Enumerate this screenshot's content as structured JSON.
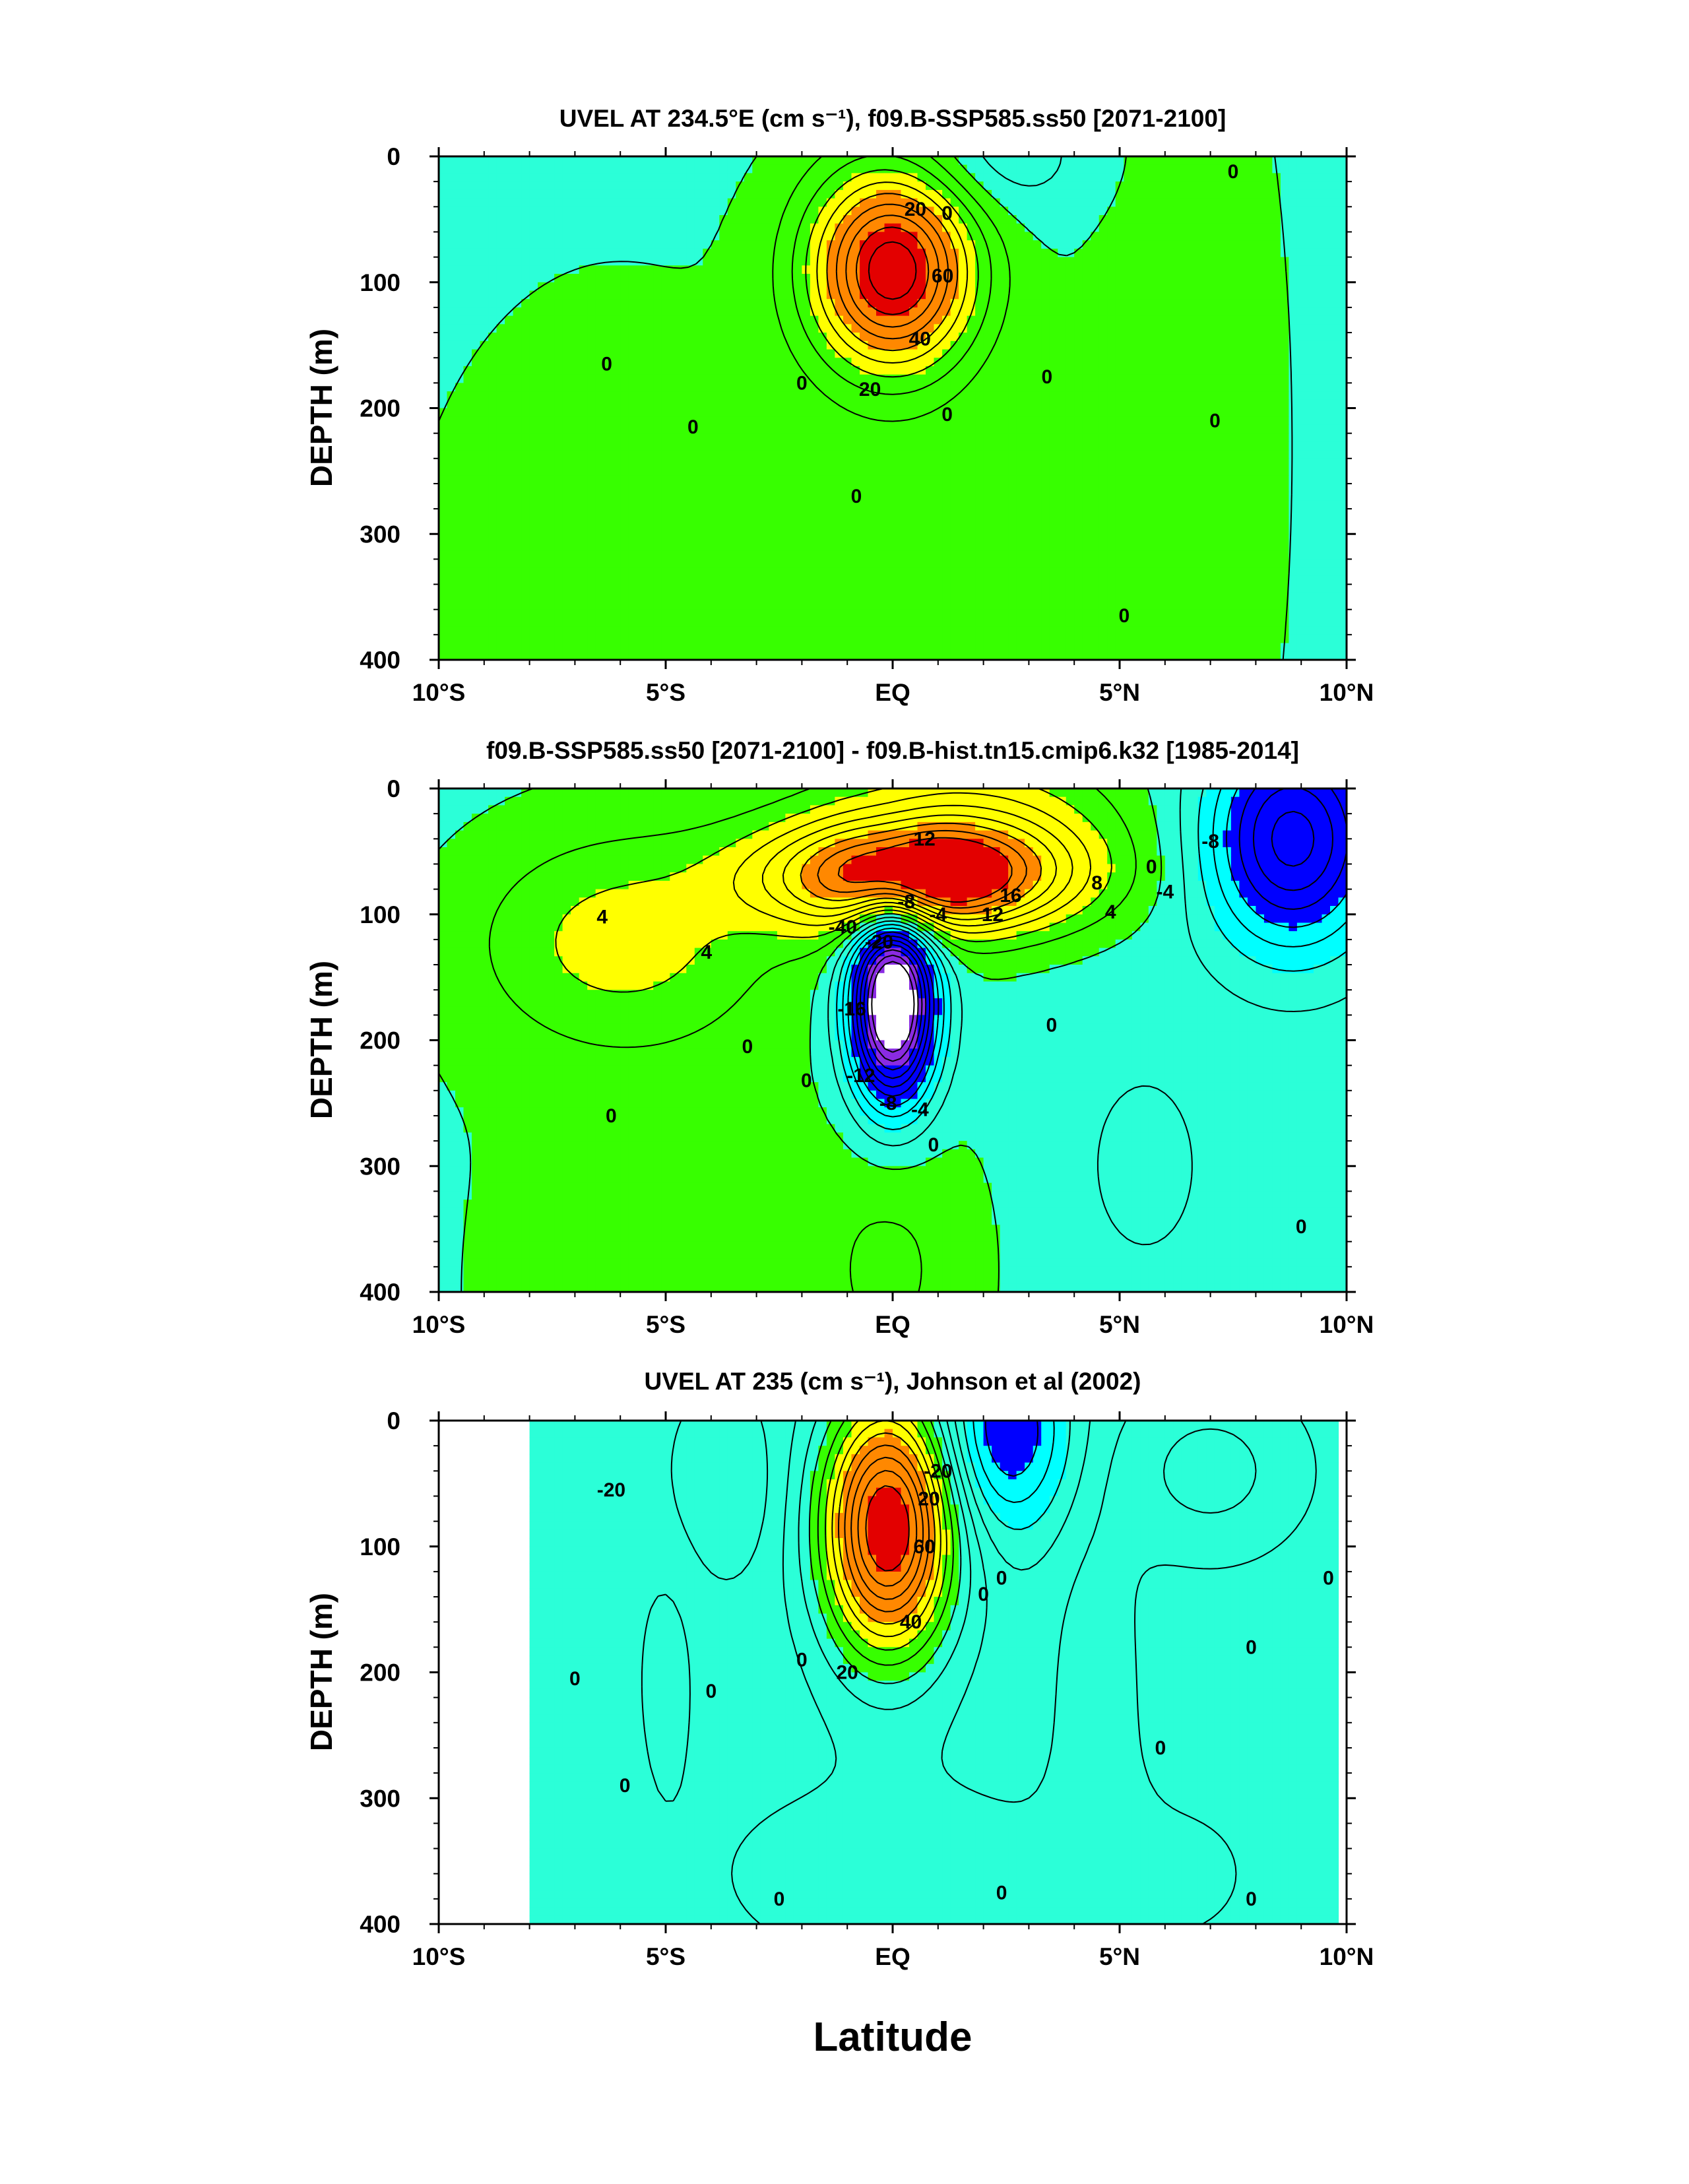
{
  "figure": {
    "xlabel": "Latitude"
  },
  "chart_data": [
    {
      "type": "heatmap",
      "title": "UVEL AT 234.5°E (cm s⁻¹), f09.B-SSP585.ss50 [2071-2100]",
      "ylabel": "DEPTH (m)",
      "xlabel": "Latitude",
      "xlim": [
        -10,
        10
      ],
      "ylim": [
        400,
        0
      ],
      "x_ticks": [
        -10,
        -5,
        0,
        5,
        10
      ],
      "x_tick_labels": [
        "10°S",
        "5°S",
        "EQ",
        "5°N",
        "10°N"
      ],
      "y_ticks": [
        0,
        100,
        200,
        300,
        400
      ],
      "y_tick_labels": [
        "0",
        "100",
        "200",
        "300",
        "400"
      ],
      "colors": [
        "#2bffd8",
        "#37ff00",
        "#ffff00",
        "#ff8800",
        "#e30000"
      ],
      "field": {
        "background": -2,
        "features": [
          {
            "lat": 0.0,
            "depth": 90,
            "amp": 100,
            "sx": 1.25,
            "sy": 55
          },
          {
            "lat": -6.0,
            "depth": 400,
            "amp": 8,
            "sx": 3.0,
            "sy": 190
          },
          {
            "lat": 0.5,
            "depth": 400,
            "amp": 8,
            "sx": 2.0,
            "sy": 120
          },
          {
            "lat": 6.3,
            "depth": 230,
            "amp": 8,
            "sx": 1.5,
            "sy": 260
          },
          {
            "lat": 2.3,
            "depth": 0,
            "amp": -16,
            "sx": 1.4,
            "sy": 35
          }
        ]
      },
      "contour_labels": [
        {
          "text": "20",
          "lat": 0.5,
          "depth": 42
        },
        {
          "text": "0",
          "lat": 1.2,
          "depth": 45
        },
        {
          "text": "60",
          "lat": 1.1,
          "depth": 95
        },
        {
          "text": "40",
          "lat": 0.6,
          "depth": 145
        },
        {
          "text": "20",
          "lat": -0.5,
          "depth": 185
        },
        {
          "text": "0",
          "lat": -2.0,
          "depth": 180
        },
        {
          "text": "0",
          "lat": 1.2,
          "depth": 205
        },
        {
          "text": "0",
          "lat": 3.4,
          "depth": 175
        },
        {
          "text": "0",
          "lat": -6.3,
          "depth": 165
        },
        {
          "text": "0",
          "lat": -4.4,
          "depth": 215
        },
        {
          "text": "0",
          "lat": -0.8,
          "depth": 270
        },
        {
          "text": "0",
          "lat": 7.5,
          "depth": 12
        },
        {
          "text": "0",
          "lat": 7.1,
          "depth": 210
        },
        {
          "text": "0",
          "lat": 5.1,
          "depth": 365
        }
      ]
    },
    {
      "type": "heatmap",
      "title": "f09.B-SSP585.ss50 [2071-2100] - f09.B-hist.tn15.cmip6.k32 [1985-2014]",
      "ylabel": "DEPTH (m)",
      "xlabel": "Latitude",
      "xlim": [
        -10,
        10
      ],
      "ylim": [
        400,
        0
      ],
      "x_ticks": [
        -10,
        -5,
        0,
        5,
        10
      ],
      "x_tick_labels": [
        "10°S",
        "5°S",
        "EQ",
        "5°N",
        "10°N"
      ],
      "y_ticks": [
        0,
        100,
        200,
        300,
        400
      ],
      "y_tick_labels": [
        "0",
        "100",
        "200",
        "300",
        "400"
      ],
      "colors": [
        "#ffffff",
        "#8a2be2",
        "#0000ff",
        "#00ffff",
        "#2bffd8",
        "#37ff00",
        "#ffff00",
        "#ff8800",
        "#e30000"
      ],
      "field": {
        "background": -1,
        "features": [
          {
            "lat": 0.5,
            "depth": 70,
            "amp": 20,
            "sx": 2.2,
            "sy": 30
          },
          {
            "lat": 1.8,
            "depth": 30,
            "amp": 6,
            "sx": 2.4,
            "sy": 50
          },
          {
            "lat": 0.0,
            "depth": 170,
            "amp": -26,
            "sx": 0.65,
            "sy": 55
          },
          {
            "lat": 8.8,
            "depth": 40,
            "amp": -14,
            "sx": 1.3,
            "sy": 60
          },
          {
            "lat": -6.0,
            "depth": 120,
            "amp": 5,
            "sx": 2.3,
            "sy": 60
          },
          {
            "lat": -5.0,
            "depth": 400,
            "amp": 1.5,
            "sx": 5.0,
            "sy": 300
          },
          {
            "lat": 0.0,
            "depth": 380,
            "amp": 2.5,
            "sx": 1.3,
            "sy": 80
          },
          {
            "lat": 5.5,
            "depth": 300,
            "amp": -2,
            "sx": 1.0,
            "sy": 60
          }
        ]
      },
      "contour_labels": [
        {
          "text": "12",
          "lat": 0.7,
          "depth": 40
        },
        {
          "text": "16",
          "lat": 2.6,
          "depth": 85
        },
        {
          "text": "12",
          "lat": 2.2,
          "depth": 100
        },
        {
          "text": "-8",
          "lat": 0.3,
          "depth": 90
        },
        {
          "text": "-4",
          "lat": 1.0,
          "depth": 100
        },
        {
          "text": "-40",
          "lat": -1.1,
          "depth": 110
        },
        {
          "text": "-20",
          "lat": -0.3,
          "depth": 122
        },
        {
          "text": "-16",
          "lat": -0.9,
          "depth": 175
        },
        {
          "text": "-12",
          "lat": -0.7,
          "depth": 228
        },
        {
          "text": "-8",
          "lat": -0.1,
          "depth": 250
        },
        {
          "text": "-4",
          "lat": 0.6,
          "depth": 255
        },
        {
          "text": "0",
          "lat": 0.9,
          "depth": 283
        },
        {
          "text": "8",
          "lat": 4.5,
          "depth": 75
        },
        {
          "text": "4",
          "lat": 4.8,
          "depth": 98
        },
        {
          "text": "0",
          "lat": 5.7,
          "depth": 62
        },
        {
          "text": "-4",
          "lat": 6.0,
          "depth": 82
        },
        {
          "text": "-8",
          "lat": 7.0,
          "depth": 42
        },
        {
          "text": "0",
          "lat": 3.5,
          "depth": 188
        },
        {
          "text": "4",
          "lat": -6.4,
          "depth": 102
        },
        {
          "text": "4",
          "lat": -4.1,
          "depth": 130
        },
        {
          "text": "0",
          "lat": -3.2,
          "depth": 205
        },
        {
          "text": "0",
          "lat": -1.9,
          "depth": 232
        },
        {
          "text": "0",
          "lat": -6.2,
          "depth": 260
        },
        {
          "text": "0",
          "lat": 9.0,
          "depth": 348
        }
      ]
    },
    {
      "type": "heatmap",
      "title": "UVEL AT 235 (cm s⁻¹), Johnson et al (2002)",
      "ylabel": "DEPTH (m)",
      "xlabel": "Latitude",
      "xlim": [
        -10,
        10
      ],
      "ylim": [
        400,
        0
      ],
      "x_ticks": [
        -10,
        -5,
        0,
        5,
        10
      ],
      "x_tick_labels": [
        "10°S",
        "5°S",
        "EQ",
        "5°N",
        "10°N"
      ],
      "y_ticks": [
        0,
        100,
        200,
        300,
        400
      ],
      "y_tick_labels": [
        "0",
        "100",
        "200",
        "300",
        "400"
      ],
      "colors": [
        "#0000ff",
        "#00ffff",
        "#2bffd8",
        "#37ff00",
        "#ffff00",
        "#ff8800",
        "#e30000"
      ],
      "data_extent": {
        "lat_min": -8.0,
        "lat_max": 9.8
      },
      "field": {
        "background": -6,
        "features": [
          {
            "lat": -0.1,
            "depth": 85,
            "amp": 120,
            "sx": 1.0,
            "sy": 70
          },
          {
            "lat": 2.5,
            "depth": 10,
            "amp": -45,
            "sx": 1.0,
            "sy": 55
          },
          {
            "lat": -3.7,
            "depth": 50,
            "amp": -14,
            "sx": 0.8,
            "sy": 50
          },
          {
            "lat": -5.0,
            "depth": 200,
            "amp": 10,
            "sx": 0.5,
            "sy": 70
          },
          {
            "lat": 4.5,
            "depth": 200,
            "amp": 12,
            "sx": 0.7,
            "sy": 90
          },
          {
            "lat": 7.0,
            "depth": 40,
            "amp": 20,
            "sx": 1.5,
            "sy": 50
          },
          {
            "lat": 0.0,
            "depth": 360,
            "amp": 10,
            "sx": 3.5,
            "sy": 70
          },
          {
            "lat": 6.5,
            "depth": 360,
            "amp": 6,
            "sx": 1.8,
            "sy": 60
          }
        ]
      },
      "contour_labels": [
        {
          "text": "-20",
          "lat": -6.2,
          "depth": 55
        },
        {
          "text": "-20",
          "lat": 1.0,
          "depth": 40
        },
        {
          "text": "20",
          "lat": 0.8,
          "depth": 62
        },
        {
          "text": "60",
          "lat": 0.7,
          "depth": 100
        },
        {
          "text": "40",
          "lat": 0.4,
          "depth": 160
        },
        {
          "text": "20",
          "lat": -1.0,
          "depth": 200
        },
        {
          "text": "0",
          "lat": -2.0,
          "depth": 190
        },
        {
          "text": "0",
          "lat": 2.4,
          "depth": 125
        },
        {
          "text": "0",
          "lat": 2.0,
          "depth": 138
        },
        {
          "text": "0",
          "lat": -7.0,
          "depth": 205
        },
        {
          "text": "0",
          "lat": -4.0,
          "depth": 215
        },
        {
          "text": "0",
          "lat": -5.9,
          "depth": 290
        },
        {
          "text": "0",
          "lat": 5.9,
          "depth": 260
        },
        {
          "text": "0",
          "lat": 7.9,
          "depth": 180
        },
        {
          "text": "0",
          "lat": 9.6,
          "depth": 125
        },
        {
          "text": "0",
          "lat": -2.5,
          "depth": 380
        },
        {
          "text": "0",
          "lat": 2.4,
          "depth": 375
        },
        {
          "text": "0",
          "lat": 7.9,
          "depth": 380
        }
      ]
    }
  ]
}
